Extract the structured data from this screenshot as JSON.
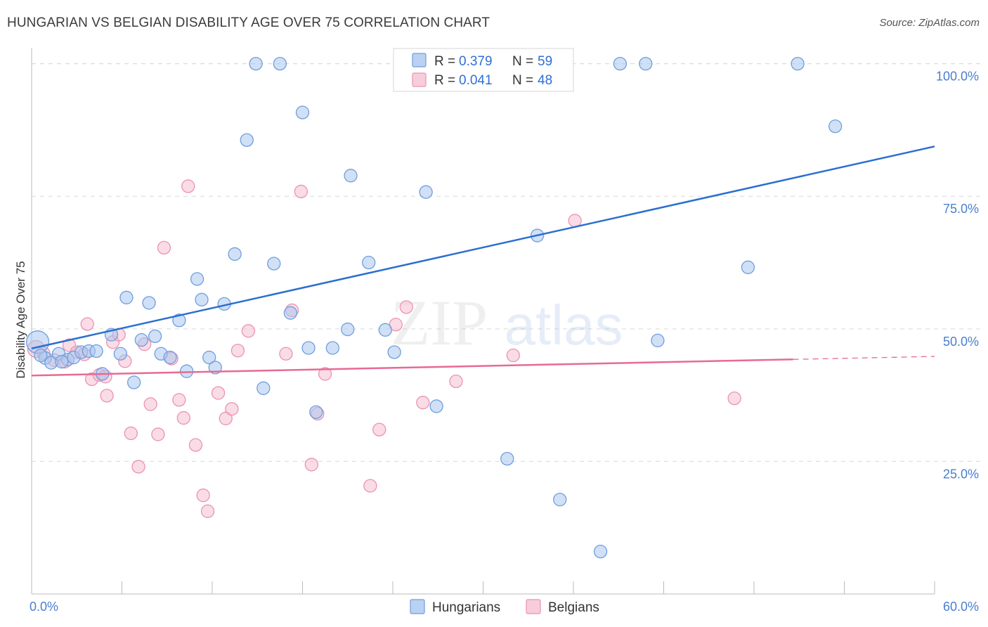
{
  "title": "HUNGARIAN VS BELGIAN DISABILITY AGE OVER 75 CORRELATION CHART",
  "source": "Source: ZipAtlas.com",
  "watermark": {
    "zip": "ZIP",
    "atlas": "atlas"
  },
  "legend": {
    "rows": [
      {
        "r_label": "R = ",
        "r_value": "0.379",
        "n_label": "N = ",
        "n_value": "59"
      },
      {
        "r_label": "R = ",
        "r_value": "0.041",
        "n_label": "N = ",
        "n_value": "48"
      }
    ]
  },
  "colors": {
    "hungarian_fill": "#a9c6ee",
    "hungarian_stroke": "#6f9ede",
    "hungarian_line": "#2a6fd0",
    "belgian_fill": "#f6c0d2",
    "belgian_stroke": "#ea93b1",
    "belgian_line": "#e76a95",
    "grid": "#d9d9d9",
    "axis": "#bbbbbb",
    "tick_text": "#4a7fcf"
  },
  "chart_data": {
    "type": "scatter",
    "title": "HUNGARIAN VS BELGIAN DISABILITY AGE OVER 75 CORRELATION CHART",
    "xlabel": "",
    "ylabel": "Disability Age Over 75",
    "xlim": [
      0,
      60
    ],
    "ylim": [
      0,
      103
    ],
    "x_tick_labels": [
      "0.0%",
      "60.0%"
    ],
    "y_ticks": [
      25,
      50,
      75,
      100
    ],
    "y_tick_labels": [
      "25.0%",
      "50.0%",
      "75.0%",
      "100.0%"
    ],
    "grid": true,
    "legend_position": "top-center",
    "series": [
      {
        "name": "Hungarians",
        "r": 0.379,
        "n": 59,
        "trend": {
          "x": [
            0,
            60
          ],
          "y": [
            46.3,
            84.4
          ]
        },
        "points": [
          [
            0.4,
            47.5,
            16
          ],
          [
            0.9,
            44.5,
            9
          ],
          [
            1.3,
            43.6,
            9
          ],
          [
            1.8,
            45.3,
            9
          ],
          [
            2.4,
            44.2,
            9
          ],
          [
            2.8,
            44.6,
            9
          ],
          [
            3.3,
            45.6,
            9
          ],
          [
            3.8,
            45.8,
            9
          ],
          [
            4.3,
            45.8,
            9
          ],
          [
            4.7,
            41.5,
            9
          ],
          [
            5.3,
            48.9,
            9
          ],
          [
            5.9,
            45.3,
            9
          ],
          [
            6.3,
            55.9,
            9
          ],
          [
            6.8,
            39.9,
            9
          ],
          [
            7.3,
            47.9,
            9
          ],
          [
            7.8,
            54.9,
            9
          ],
          [
            8.2,
            48.6,
            9
          ],
          [
            8.6,
            45.3,
            9
          ],
          [
            9.2,
            44.6,
            9
          ],
          [
            9.8,
            51.6,
            9
          ],
          [
            10.3,
            42.0,
            9
          ],
          [
            11.0,
            59.4,
            9
          ],
          [
            11.3,
            55.5,
            9
          ],
          [
            11.8,
            44.6,
            9
          ],
          [
            12.2,
            42.7,
            9
          ],
          [
            12.8,
            54.7,
            9
          ],
          [
            13.5,
            64.1,
            9
          ],
          [
            14.3,
            85.6,
            9
          ],
          [
            14.9,
            100.0,
            9
          ],
          [
            15.4,
            38.8,
            9
          ],
          [
            16.1,
            62.3,
            9
          ],
          [
            16.5,
            100.0,
            9
          ],
          [
            17.2,
            53.0,
            9
          ],
          [
            18.0,
            90.8,
            9
          ],
          [
            18.4,
            46.4,
            9
          ],
          [
            18.9,
            34.3,
            9
          ],
          [
            20.0,
            46.4,
            9
          ],
          [
            21.0,
            49.9,
            9
          ],
          [
            21.2,
            78.9,
            9
          ],
          [
            22.4,
            62.5,
            9
          ],
          [
            23.5,
            49.8,
            9
          ],
          [
            24.1,
            45.6,
            9
          ],
          [
            25.0,
            100.0,
            9
          ],
          [
            26.2,
            75.8,
            9
          ],
          [
            26.9,
            35.4,
            9
          ],
          [
            27.4,
            100.0,
            9
          ],
          [
            31.6,
            25.5,
            9
          ],
          [
            33.6,
            67.6,
            9
          ],
          [
            35.1,
            17.8,
            9
          ],
          [
            37.8,
            8.0,
            9
          ],
          [
            39.1,
            100.0,
            9
          ],
          [
            40.8,
            100.0,
            9
          ],
          [
            41.6,
            47.8,
            9
          ],
          [
            47.6,
            61.6,
            9
          ],
          [
            50.9,
            100.0,
            9
          ],
          [
            53.4,
            88.2,
            9
          ],
          [
            0.6,
            45.0,
            9
          ],
          [
            2.0,
            43.8,
            9
          ],
          [
            25.3,
            98.0,
            9
          ]
        ]
      },
      {
        "name": "Belgians",
        "r": 0.041,
        "n": 48,
        "trend": {
          "x": [
            0,
            60
          ],
          "y": [
            41.2,
            44.8
          ]
        },
        "points": [
          [
            0.3,
            46.2,
            12
          ],
          [
            0.8,
            45.4,
            9
          ],
          [
            1.5,
            44.1,
            9
          ],
          [
            2.2,
            43.8,
            9
          ],
          [
            2.5,
            46.9,
            9
          ],
          [
            3.0,
            45.6,
            9
          ],
          [
            3.5,
            45.2,
            9
          ],
          [
            3.7,
            50.9,
            9
          ],
          [
            4.0,
            40.5,
            9
          ],
          [
            4.5,
            41.3,
            9
          ],
          [
            5.0,
            37.4,
            9
          ],
          [
            5.4,
            47.5,
            9
          ],
          [
            5.8,
            48.9,
            9
          ],
          [
            6.2,
            43.9,
            9
          ],
          [
            6.6,
            30.3,
            9
          ],
          [
            7.1,
            24.0,
            9
          ],
          [
            7.5,
            47.1,
            9
          ],
          [
            7.9,
            35.8,
            9
          ],
          [
            8.4,
            30.1,
            9
          ],
          [
            8.8,
            65.3,
            9
          ],
          [
            9.3,
            44.4,
            9
          ],
          [
            9.8,
            36.6,
            9
          ],
          [
            10.1,
            33.2,
            9
          ],
          [
            10.4,
            76.9,
            9
          ],
          [
            10.9,
            28.1,
            9
          ],
          [
            11.4,
            18.6,
            9
          ],
          [
            11.7,
            15.6,
            9
          ],
          [
            12.4,
            37.9,
            9
          ],
          [
            12.9,
            33.1,
            9
          ],
          [
            13.3,
            34.9,
            9
          ],
          [
            13.7,
            45.9,
            9
          ],
          [
            14.4,
            49.6,
            9
          ],
          [
            16.9,
            45.3,
            9
          ],
          [
            17.3,
            53.5,
            9
          ],
          [
            17.9,
            75.9,
            9
          ],
          [
            18.6,
            24.4,
            9
          ],
          [
            19.0,
            34.0,
            9
          ],
          [
            19.5,
            41.5,
            9
          ],
          [
            22.5,
            20.4,
            9
          ],
          [
            23.1,
            31.0,
            9
          ],
          [
            24.2,
            50.8,
            9
          ],
          [
            24.9,
            54.1,
            9
          ],
          [
            26.0,
            36.1,
            9
          ],
          [
            28.2,
            40.1,
            9
          ],
          [
            32.0,
            45.0,
            9
          ],
          [
            36.1,
            70.4,
            9
          ],
          [
            46.7,
            36.9,
            9
          ],
          [
            4.9,
            41.0,
            9
          ]
        ]
      }
    ]
  },
  "bottom_legend": [
    "Hungarians",
    "Belgians"
  ]
}
